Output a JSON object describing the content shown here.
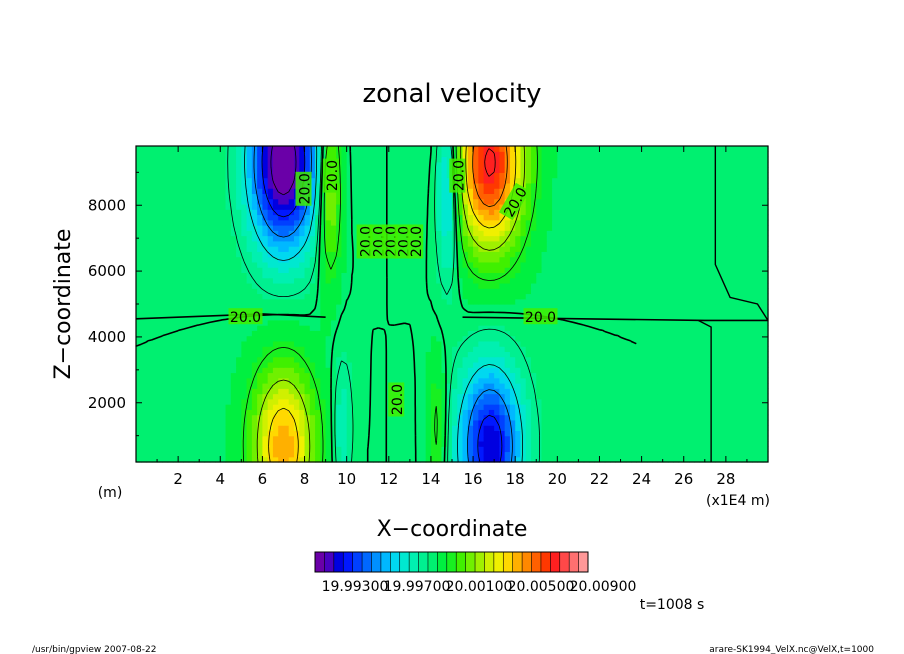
{
  "chart_data": {
    "type": "heatmap",
    "title": "zonal velocity",
    "xlabel": "X−coordinate",
    "ylabel": "Z−coordinate",
    "x_unit_label": "(m)",
    "x_scale_label": "(x1E4 m)",
    "xlim": [
      0,
      30
    ],
    "ylim": [
      200,
      9800
    ],
    "x_ticks": [
      2,
      4,
      6,
      8,
      10,
      12,
      14,
      16,
      18,
      20,
      22,
      24,
      26,
      28
    ],
    "y_ticks": [
      2000,
      4000,
      6000,
      8000
    ],
    "field": {
      "background": 20.0,
      "anomalies": [
        {
          "x": 7.0,
          "z": 9300,
          "amplitude": -0.0075,
          "sx": 1.6,
          "sz": 2600
        },
        {
          "x": 16.8,
          "z": 9300,
          "amplitude": 0.0072,
          "sx": 1.6,
          "sz": 2600
        },
        {
          "x": 7.0,
          "z": 700,
          "amplitude": 0.005,
          "sx": 1.5,
          "sz": 2400
        },
        {
          "x": 16.8,
          "z": 700,
          "amplitude": -0.0058,
          "sx": 1.5,
          "sz": 2400
        },
        {
          "x": 9.2,
          "z": 8600,
          "amplitude": 0.0032,
          "sx": 0.55,
          "sz": 2600
        },
        {
          "x": 14.8,
          "z": 8600,
          "amplitude": -0.0032,
          "sx": 0.55,
          "sz": 2600
        },
        {
          "x": 9.8,
          "z": 1200,
          "amplitude": -0.0014,
          "sx": 0.5,
          "sz": 2200
        },
        {
          "x": 14.3,
          "z": 1200,
          "amplitude": 0.0014,
          "sx": 0.5,
          "sz": 2200
        }
      ]
    },
    "contour_labels": [
      {
        "text": "20.0",
        "x": 5.2,
        "z": 4600,
        "rotate": 0
      },
      {
        "text": "20.0",
        "x": 19.2,
        "z": 4600,
        "rotate": 0
      },
      {
        "text": "20.0",
        "x": 8.0,
        "z": 8500,
        "rotate": -90
      },
      {
        "text": "20.0",
        "x": 9.3,
        "z": 8900,
        "rotate": -90
      },
      {
        "text": "20.0",
        "x": 10.9,
        "z": 6900,
        "rotate": -90
      },
      {
        "text": "20.0",
        "x": 11.5,
        "z": 6900,
        "rotate": -90
      },
      {
        "text": "20.0",
        "x": 12.1,
        "z": 6900,
        "rotate": -90
      },
      {
        "text": "20.0",
        "x": 12.7,
        "z": 6900,
        "rotate": -90
      },
      {
        "text": "20.0",
        "x": 13.3,
        "z": 6900,
        "rotate": -90
      },
      {
        "text": "20.0",
        "x": 15.3,
        "z": 8900,
        "rotate": -90
      },
      {
        "text": "20.0",
        "x": 18.0,
        "z": 8100,
        "rotate": -60
      },
      {
        "text": "20.0",
        "x": 12.4,
        "z": 2100,
        "rotate": -90
      }
    ],
    "colorbar": {
      "colors": [
        "#6a00a8",
        "#4a00c0",
        "#0000e0",
        "#0018ff",
        "#0040ff",
        "#0068ff",
        "#0090ff",
        "#00b8ff",
        "#00d8f0",
        "#00e8d0",
        "#00f0b0",
        "#00f090",
        "#00f070",
        "#00f040",
        "#18f020",
        "#40f000",
        "#70f000",
        "#a0f000",
        "#d0f000",
        "#f0f000",
        "#ffd800",
        "#ffb000",
        "#ff8800",
        "#ff6000",
        "#ff3800",
        "#ff2020",
        "#ff4848",
        "#ff7070",
        "#ff9898"
      ],
      "labels": [
        "19.99300",
        "19.99700",
        "20.00100",
        "20.00500",
        "20.00900"
      ]
    },
    "time_label": "t=1008 s"
  },
  "footer": {
    "left": "/usr/bin/gpview   2007-08-22",
    "right": "arare-SK1994_VelX.nc@VelX,t=1000"
  }
}
